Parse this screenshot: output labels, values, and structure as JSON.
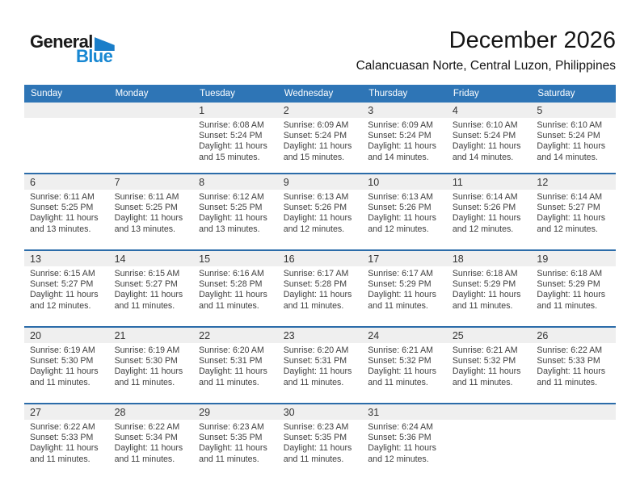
{
  "logo": {
    "general": "General",
    "blue": "Blue"
  },
  "header": {
    "title": "December 2026",
    "subtitle": "Calancuasan Norte, Central Luzon, Philippines"
  },
  "colors": {
    "header_bg": "#2E75B6",
    "header_text": "#FFFFFF",
    "row_line": "#2B6CA9",
    "daynum_strip": "#EFEFEF",
    "logo_blue": "#1787D2",
    "logo_triangle": "#1A7EC9"
  },
  "calendar": {
    "weekday_headers": [
      "Sunday",
      "Monday",
      "Tuesday",
      "Wednesday",
      "Thursday",
      "Friday",
      "Saturday"
    ],
    "labels": {
      "sunrise": "Sunrise:",
      "sunset": "Sunset:"
    },
    "weeks": [
      [
        null,
        null,
        {
          "date": "1",
          "sunrise": "6:08 AM",
          "sunset": "5:24 PM",
          "daylight_line1": "Daylight: 11 hours",
          "daylight_line2": "and 15 minutes."
        },
        {
          "date": "2",
          "sunrise": "6:09 AM",
          "sunset": "5:24 PM",
          "daylight_line1": "Daylight: 11 hours",
          "daylight_line2": "and 15 minutes."
        },
        {
          "date": "3",
          "sunrise": "6:09 AM",
          "sunset": "5:24 PM",
          "daylight_line1": "Daylight: 11 hours",
          "daylight_line2": "and 14 minutes."
        },
        {
          "date": "4",
          "sunrise": "6:10 AM",
          "sunset": "5:24 PM",
          "daylight_line1": "Daylight: 11 hours",
          "daylight_line2": "and 14 minutes."
        },
        {
          "date": "5",
          "sunrise": "6:10 AM",
          "sunset": "5:24 PM",
          "daylight_line1": "Daylight: 11 hours",
          "daylight_line2": "and 14 minutes."
        }
      ],
      [
        {
          "date": "6",
          "sunrise": "6:11 AM",
          "sunset": "5:25 PM",
          "daylight_line1": "Daylight: 11 hours",
          "daylight_line2": "and 13 minutes."
        },
        {
          "date": "7",
          "sunrise": "6:11 AM",
          "sunset": "5:25 PM",
          "daylight_line1": "Daylight: 11 hours",
          "daylight_line2": "and 13 minutes."
        },
        {
          "date": "8",
          "sunrise": "6:12 AM",
          "sunset": "5:25 PM",
          "daylight_line1": "Daylight: 11 hours",
          "daylight_line2": "and 13 minutes."
        },
        {
          "date": "9",
          "sunrise": "6:13 AM",
          "sunset": "5:26 PM",
          "daylight_line1": "Daylight: 11 hours",
          "daylight_line2": "and 12 minutes."
        },
        {
          "date": "10",
          "sunrise": "6:13 AM",
          "sunset": "5:26 PM",
          "daylight_line1": "Daylight: 11 hours",
          "daylight_line2": "and 12 minutes."
        },
        {
          "date": "11",
          "sunrise": "6:14 AM",
          "sunset": "5:26 PM",
          "daylight_line1": "Daylight: 11 hours",
          "daylight_line2": "and 12 minutes."
        },
        {
          "date": "12",
          "sunrise": "6:14 AM",
          "sunset": "5:27 PM",
          "daylight_line1": "Daylight: 11 hours",
          "daylight_line2": "and 12 minutes."
        }
      ],
      [
        {
          "date": "13",
          "sunrise": "6:15 AM",
          "sunset": "5:27 PM",
          "daylight_line1": "Daylight: 11 hours",
          "daylight_line2": "and 12 minutes."
        },
        {
          "date": "14",
          "sunrise": "6:15 AM",
          "sunset": "5:27 PM",
          "daylight_line1": "Daylight: 11 hours",
          "daylight_line2": "and 11 minutes."
        },
        {
          "date": "15",
          "sunrise": "6:16 AM",
          "sunset": "5:28 PM",
          "daylight_line1": "Daylight: 11 hours",
          "daylight_line2": "and 11 minutes."
        },
        {
          "date": "16",
          "sunrise": "6:17 AM",
          "sunset": "5:28 PM",
          "daylight_line1": "Daylight: 11 hours",
          "daylight_line2": "and 11 minutes."
        },
        {
          "date": "17",
          "sunrise": "6:17 AM",
          "sunset": "5:29 PM",
          "daylight_line1": "Daylight: 11 hours",
          "daylight_line2": "and 11 minutes."
        },
        {
          "date": "18",
          "sunrise": "6:18 AM",
          "sunset": "5:29 PM",
          "daylight_line1": "Daylight: 11 hours",
          "daylight_line2": "and 11 minutes."
        },
        {
          "date": "19",
          "sunrise": "6:18 AM",
          "sunset": "5:29 PM",
          "daylight_line1": "Daylight: 11 hours",
          "daylight_line2": "and 11 minutes."
        }
      ],
      [
        {
          "date": "20",
          "sunrise": "6:19 AM",
          "sunset": "5:30 PM",
          "daylight_line1": "Daylight: 11 hours",
          "daylight_line2": "and 11 minutes."
        },
        {
          "date": "21",
          "sunrise": "6:19 AM",
          "sunset": "5:30 PM",
          "daylight_line1": "Daylight: 11 hours",
          "daylight_line2": "and 11 minutes."
        },
        {
          "date": "22",
          "sunrise": "6:20 AM",
          "sunset": "5:31 PM",
          "daylight_line1": "Daylight: 11 hours",
          "daylight_line2": "and 11 minutes."
        },
        {
          "date": "23",
          "sunrise": "6:20 AM",
          "sunset": "5:31 PM",
          "daylight_line1": "Daylight: 11 hours",
          "daylight_line2": "and 11 minutes."
        },
        {
          "date": "24",
          "sunrise": "6:21 AM",
          "sunset": "5:32 PM",
          "daylight_line1": "Daylight: 11 hours",
          "daylight_line2": "and 11 minutes."
        },
        {
          "date": "25",
          "sunrise": "6:21 AM",
          "sunset": "5:32 PM",
          "daylight_line1": "Daylight: 11 hours",
          "daylight_line2": "and 11 minutes."
        },
        {
          "date": "26",
          "sunrise": "6:22 AM",
          "sunset": "5:33 PM",
          "daylight_line1": "Daylight: 11 hours",
          "daylight_line2": "and 11 minutes."
        }
      ],
      [
        {
          "date": "27",
          "sunrise": "6:22 AM",
          "sunset": "5:33 PM",
          "daylight_line1": "Daylight: 11 hours",
          "daylight_line2": "and 11 minutes."
        },
        {
          "date": "28",
          "sunrise": "6:22 AM",
          "sunset": "5:34 PM",
          "daylight_line1": "Daylight: 11 hours",
          "daylight_line2": "and 11 minutes."
        },
        {
          "date": "29",
          "sunrise": "6:23 AM",
          "sunset": "5:35 PM",
          "daylight_line1": "Daylight: 11 hours",
          "daylight_line2": "and 11 minutes."
        },
        {
          "date": "30",
          "sunrise": "6:23 AM",
          "sunset": "5:35 PM",
          "daylight_line1": "Daylight: 11 hours",
          "daylight_line2": "and 11 minutes."
        },
        {
          "date": "31",
          "sunrise": "6:24 AM",
          "sunset": "5:36 PM",
          "daylight_line1": "Daylight: 11 hours",
          "daylight_line2": "and 12 minutes."
        },
        null,
        null
      ]
    ]
  }
}
